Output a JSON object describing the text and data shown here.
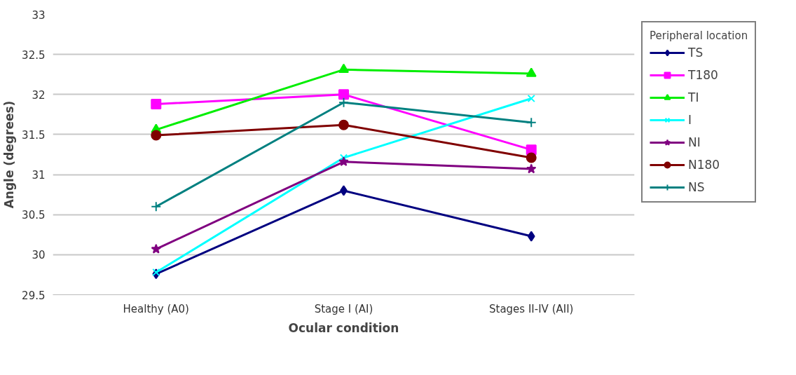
{
  "chart_data": {
    "type": "line",
    "xlabel": "Ocular condition",
    "ylabel": "Angle (degrees)",
    "legend_title": "Peripheral location",
    "categories": [
      "Healthy (A0)",
      "Stage I (AI)",
      "Stages II-IV (AII)"
    ],
    "ylim": [
      29.5,
      33
    ],
    "yticks": [
      29.5,
      30,
      30.5,
      31,
      31.5,
      32,
      32.5,
      33
    ],
    "grid": "y",
    "legend": "right",
    "line_style": "solid",
    "series": [
      {
        "name": "TS",
        "color": "#000080",
        "marker": "diamond",
        "values": [
          29.76,
          30.8,
          30.23
        ]
      },
      {
        "name": "T180",
        "color": "#ff00ff",
        "marker": "square",
        "values": [
          31.88,
          32.0,
          31.31
        ]
      },
      {
        "name": "TI",
        "color": "#00ee00",
        "marker": "triangle",
        "values": [
          31.56,
          32.31,
          32.26
        ]
      },
      {
        "name": "I",
        "color": "#00ffff",
        "marker": "x",
        "values": [
          29.78,
          31.21,
          31.95
        ]
      },
      {
        "name": "NI",
        "color": "#800080",
        "marker": "star",
        "values": [
          30.07,
          31.16,
          31.07
        ]
      },
      {
        "name": "N180",
        "color": "#800000",
        "marker": "circle",
        "values": [
          31.49,
          31.62,
          31.21
        ]
      },
      {
        "name": "NS",
        "color": "#008080",
        "marker": "cross",
        "values": [
          30.6,
          31.9,
          31.65
        ]
      }
    ]
  }
}
